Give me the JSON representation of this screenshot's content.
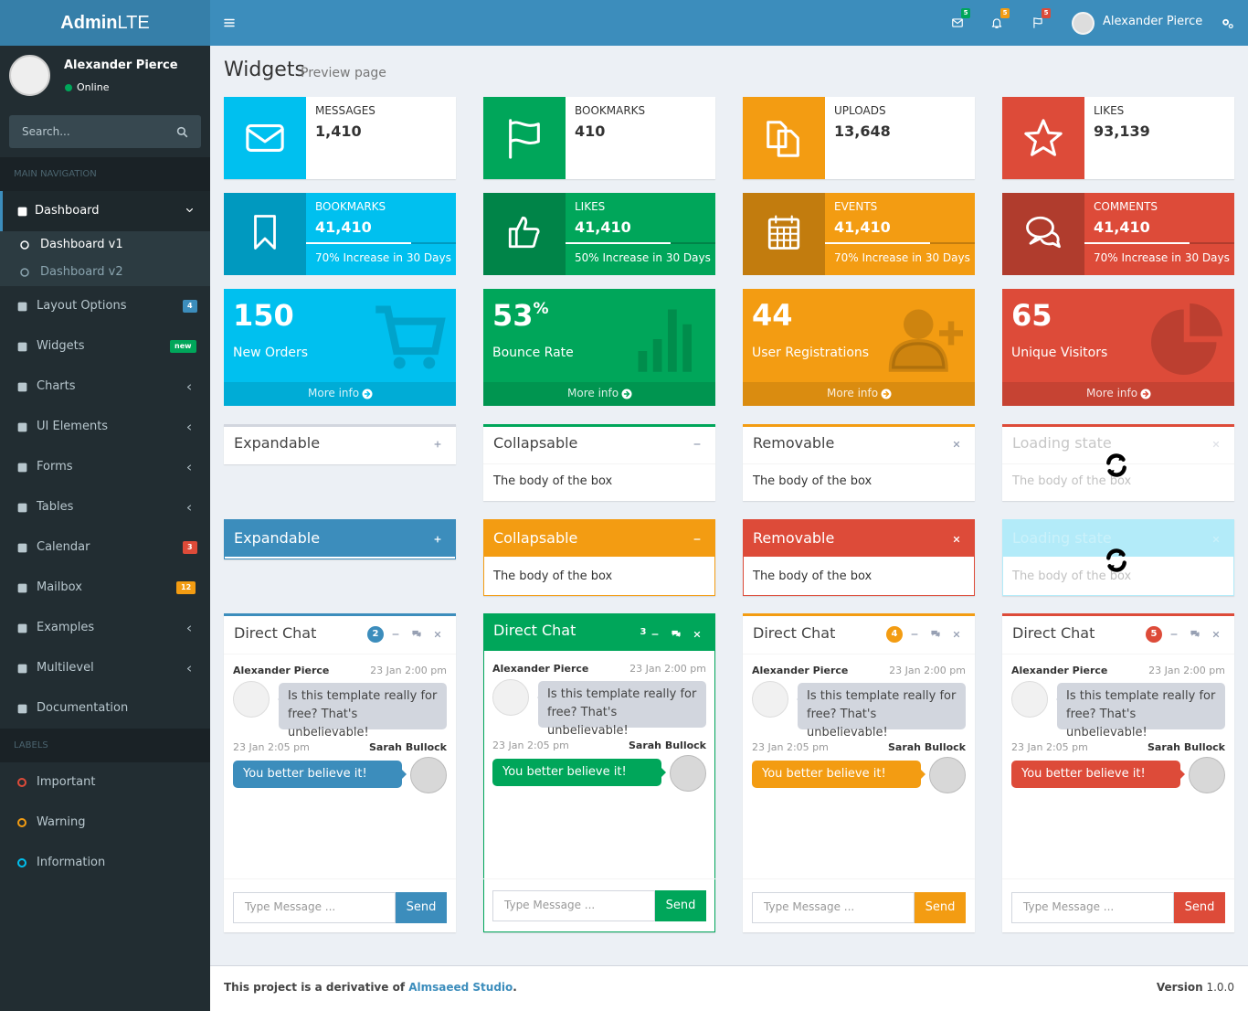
{
  "header": {
    "logo_bold": "Admin",
    "logo_light": "LTE",
    "badges": [
      "5",
      "5",
      "5"
    ],
    "user": "Alexander Pierce"
  },
  "sidebar": {
    "user": "Alexander Pierce",
    "status": "Online",
    "search": "Search...",
    "main_heading": "MAIN NAVIGATION",
    "nav": [
      {
        "label": "Dashboard",
        "children": [
          "Dashboard v1",
          "Dashboard v2"
        ]
      },
      {
        "label": "Layout Options",
        "badge": "4"
      },
      {
        "label": "Widgets",
        "badge": "new"
      },
      {
        "label": "Charts"
      },
      {
        "label": "UI Elements"
      },
      {
        "label": "Forms"
      },
      {
        "label": "Tables"
      },
      {
        "label": "Calendar",
        "badge": "3"
      },
      {
        "label": "Mailbox",
        "badge": "12"
      },
      {
        "label": "Examples"
      },
      {
        "label": "Multilevel"
      },
      {
        "label": "Documentation"
      }
    ],
    "labels_heading": "LABELS",
    "labels": [
      "Important",
      "Warning",
      "Information"
    ]
  },
  "content_header": {
    "title": "Widgets",
    "subtitle": "Preview page"
  },
  "info_boxes": [
    {
      "label": "MESSAGES",
      "number": "1,410"
    },
    {
      "label": "BOOKMARKS",
      "number": "410"
    },
    {
      "label": "UPLOADS",
      "number": "13,648"
    },
    {
      "label": "LIKES",
      "number": "93,139"
    }
  ],
  "progress_boxes": [
    {
      "label": "BOOKMARKS",
      "number": "41,410",
      "description": "70% Increase in 30 Days"
    },
    {
      "label": "LIKES",
      "number": "41,410",
      "description": "50% Increase in 30 Days"
    },
    {
      "label": "EVENTS",
      "number": "41,410",
      "description": "70% Increase in 30 Days"
    },
    {
      "label": "COMMENTS",
      "number": "41,410",
      "description": "70% Increase in 30 Days"
    }
  ],
  "small_boxes": [
    {
      "number": "150",
      "label": "New Orders",
      "footer": "More info"
    },
    {
      "number": "53",
      "sup": "%",
      "label": "Bounce Rate",
      "footer": "More info"
    },
    {
      "number": "44",
      "label": "User Registrations",
      "footer": "More info"
    },
    {
      "number": "65",
      "label": "Unique Visitors",
      "footer": "More info"
    }
  ],
  "boxes": [
    {
      "title": "Expandable"
    },
    {
      "title": "Collapsable",
      "body": "The body of the box"
    },
    {
      "title": "Removable",
      "body": "The body of the box"
    },
    {
      "title": "Loading state",
      "body": "The body of the box"
    }
  ],
  "solid_boxes": [
    {
      "title": "Expandable"
    },
    {
      "title": "Collapsable",
      "body": "The body of the box"
    },
    {
      "title": "Removable",
      "body": "The body of the box"
    },
    {
      "title": "Loading state",
      "body": "The body of the box"
    }
  ],
  "chats": [
    {
      "title": "Direct Chat",
      "badge": "2",
      "messages": [
        {
          "name": "Alexander Pierce",
          "time": "23 Jan 2:00 pm",
          "text": "Is this template really for free? That's unbelievable!"
        },
        {
          "name": "Sarah Bullock",
          "time": "23 Jan 2:05 pm",
          "text": "You better believe it!"
        }
      ],
      "placeholder": "Type Message ...",
      "button": "Send"
    },
    {
      "title": "Direct Chat",
      "badge": "3",
      "messages": [
        {
          "name": "Alexander Pierce",
          "time": "23 Jan 2:00 pm",
          "text": "Is this template really for free? That's unbelievable!"
        },
        {
          "name": "Sarah Bullock",
          "time": "23 Jan 2:05 pm",
          "text": "You better believe it!"
        }
      ],
      "placeholder": "Type Message ...",
      "button": "Send"
    },
    {
      "title": "Direct Chat",
      "badge": "4",
      "messages": [
        {
          "name": "Alexander Pierce",
          "time": "23 Jan 2:00 pm",
          "text": "Is this template really for free? That's unbelievable!"
        },
        {
          "name": "Sarah Bullock",
          "time": "23 Jan 2:05 pm",
          "text": "You better believe it!"
        }
      ],
      "placeholder": "Type Message ...",
      "button": "Send"
    },
    {
      "title": "Direct Chat",
      "badge": "5",
      "messages": [
        {
          "name": "Alexander Pierce",
          "time": "23 Jan 2:00 pm",
          "text": "Is this template really for free? That's unbelievable!"
        },
        {
          "name": "Sarah Bullock",
          "time": "23 Jan 2:05 pm",
          "text": "You better believe it!"
        }
      ],
      "placeholder": "Type Message ...",
      "button": "Send"
    }
  ],
  "footer": {
    "text": "This project is a derivative of ",
    "link": "Almsaeed Studio",
    "end": ".",
    "version_label": "Version",
    "version": " 1.0.0"
  }
}
